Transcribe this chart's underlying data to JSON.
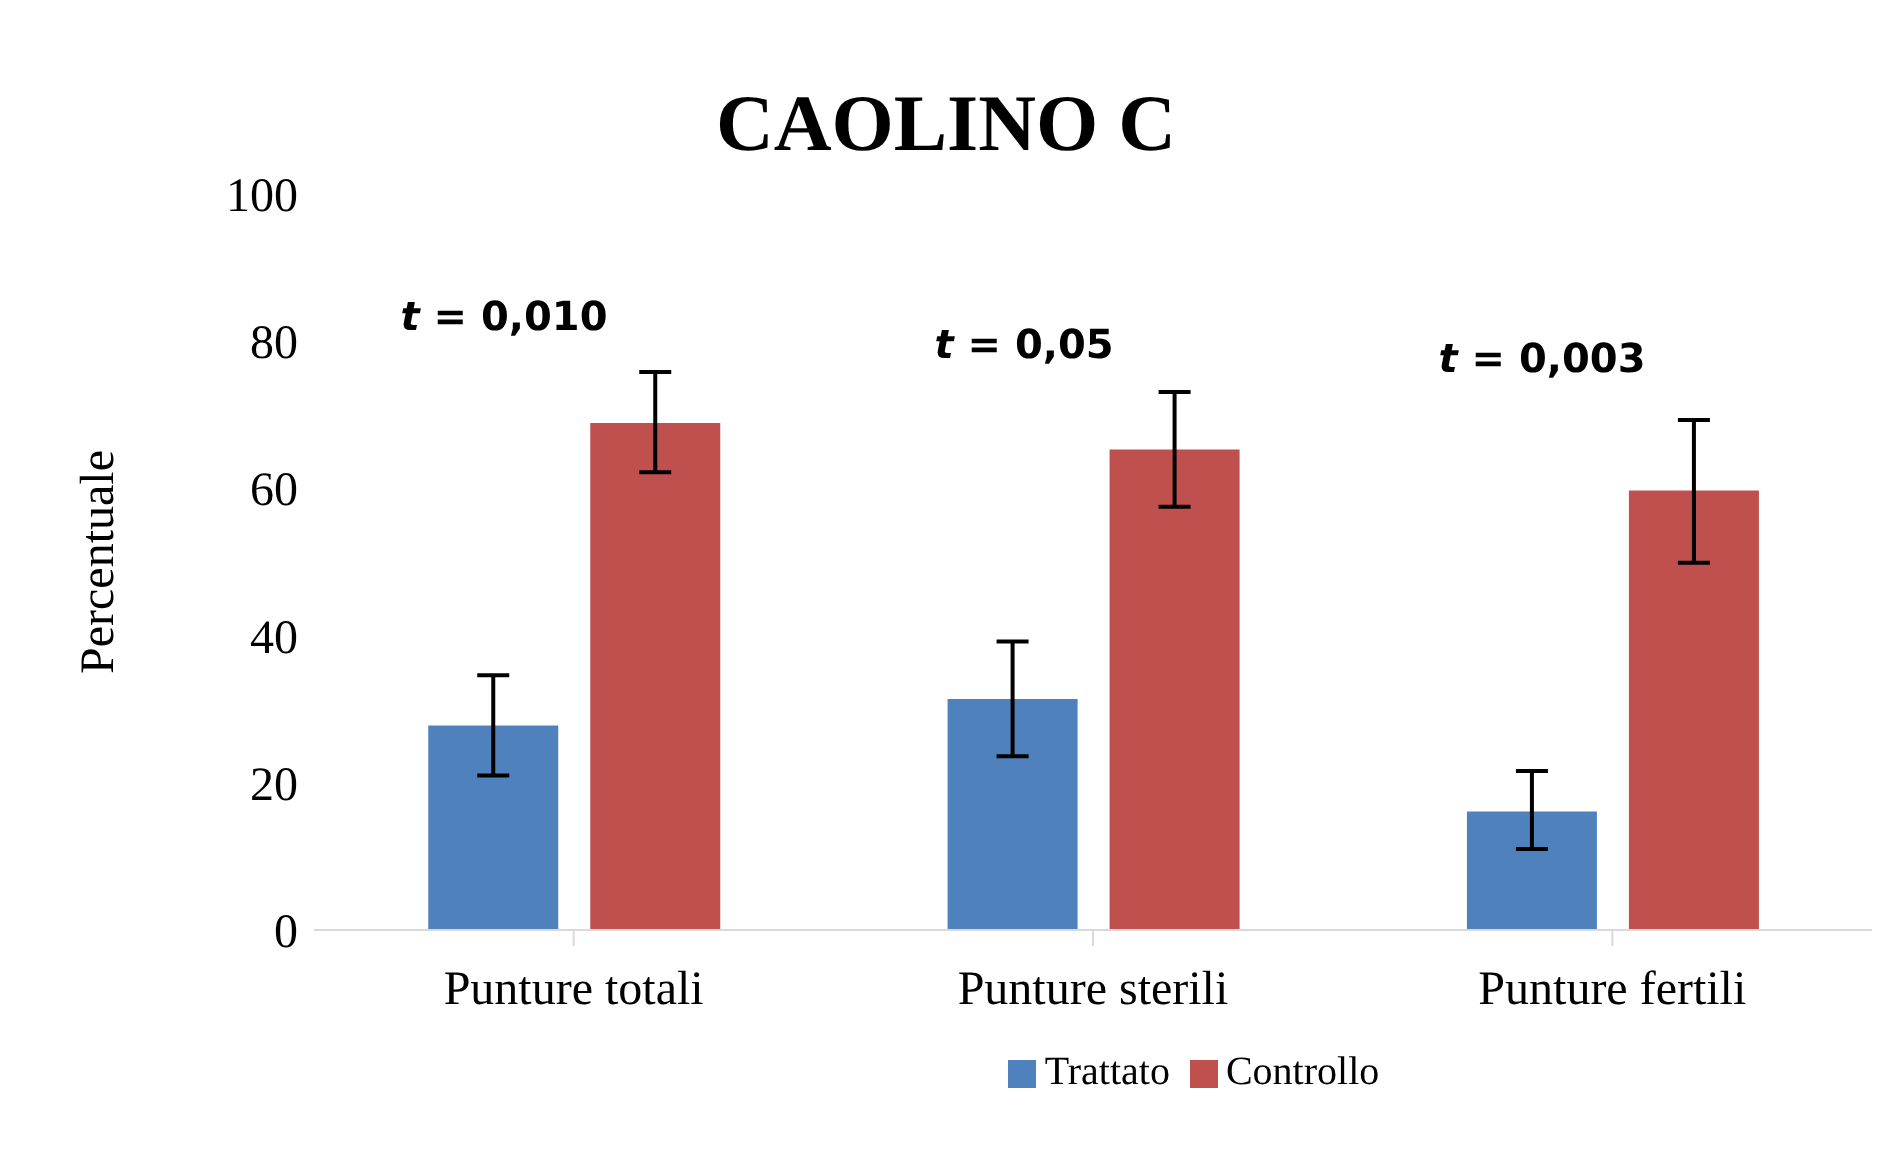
{
  "chart_data": {
    "type": "bar",
    "title": "CAOLINO C",
    "ylabel": "Percentuale",
    "categories": [
      "Punture totali",
      "Punture sterili",
      "Punture fertili"
    ],
    "series": [
      {
        "name": "Trattato",
        "color": "#4f81bd",
        "values": [
          27.8,
          31.4,
          16.1
        ],
        "errors": [
          [
            21,
            34.6
          ],
          [
            23.6,
            39.2
          ],
          [
            11,
            21.6
          ]
        ]
      },
      {
        "name": "Controllo",
        "color": "#c0504d",
        "values": [
          68.9,
          65.3,
          59.7
        ],
        "errors": [
          [
            62.2,
            75.8
          ],
          [
            57.5,
            73.1
          ],
          [
            49.9,
            69.3
          ]
        ]
      }
    ],
    "ylim": [
      0,
      100
    ],
    "yticks": [
      0,
      20,
      40,
      60,
      80,
      100
    ],
    "grid": false,
    "legend": "bottom",
    "annotations": [
      "t = 0,010",
      "t = 0,05",
      "t = 0,003"
    ]
  }
}
